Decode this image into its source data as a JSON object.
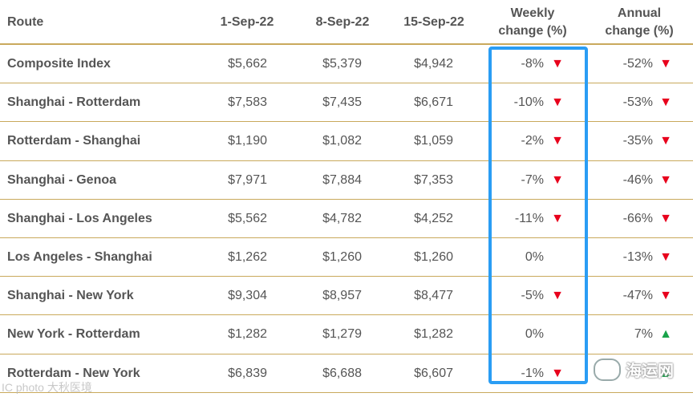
{
  "headers": {
    "route": "Route",
    "d1": "1-Sep-22",
    "d2": "8-Sep-22",
    "d3": "15-Sep-22",
    "weekly_line1": "Weekly",
    "weekly_line2": "change (%)",
    "annual_line1": "Annual",
    "annual_line2": "change (%)"
  },
  "rows": [
    {
      "route": "Composite Index",
      "d1": "$5,662",
      "d2": "$5,379",
      "d3": "$4,942",
      "weekly": "-8%",
      "weekly_icon": "▼",
      "annual": "-52%",
      "annual_icon": "▼"
    },
    {
      "route": "Shanghai - Rotterdam",
      "d1": "$7,583",
      "d2": "$7,435",
      "d3": "$6,671",
      "weekly": "-10%",
      "weekly_icon": "▼",
      "annual": "-53%",
      "annual_icon": "▼"
    },
    {
      "route": "Rotterdam - Shanghai",
      "d1": "$1,190",
      "d2": "$1,082",
      "d3": "$1,059",
      "weekly": "-2%",
      "weekly_icon": "▼",
      "annual": "-35%",
      "annual_icon": "▼"
    },
    {
      "route": "Shanghai - Genoa",
      "d1": "$7,971",
      "d2": "$7,884",
      "d3": "$7,353",
      "weekly": "-7%",
      "weekly_icon": "▼",
      "annual": "-46%",
      "annual_icon": "▼"
    },
    {
      "route": "Shanghai - Los Angeles",
      "d1": "$5,562",
      "d2": "$4,782",
      "d3": "$4,252",
      "weekly": "-11%",
      "weekly_icon": "▼",
      "annual": "-66%",
      "annual_icon": "▼"
    },
    {
      "route": "Los Angeles - Shanghai",
      "d1": "$1,262",
      "d2": "$1,260",
      "d3": "$1,260",
      "weekly": "0%",
      "weekly_icon": "",
      "annual": "-13%",
      "annual_icon": "▼"
    },
    {
      "route": "Shanghai - New York",
      "d1": "$9,304",
      "d2": "$8,957",
      "d3": "$8,477",
      "weekly": "-5%",
      "weekly_icon": "▼",
      "annual": "-47%",
      "annual_icon": "▼"
    },
    {
      "route": "New York - Rotterdam",
      "d1": "$1,282",
      "d2": "$1,279",
      "d3": "$1,282",
      "weekly": "0%",
      "weekly_icon": "",
      "annual": "7%",
      "annual_icon": "▲"
    },
    {
      "route": "Rotterdam - New York",
      "d1": "$6,839",
      "d2": "$6,688",
      "d3": "$6,607",
      "weekly": "-1%",
      "weekly_icon": "▼",
      "annual": "",
      "annual_icon": "▲"
    }
  ],
  "colors": {
    "down": "#e8001c",
    "up": "#19a34a",
    "rule": "#c9a95c",
    "highlight": "#2a9df4"
  },
  "watermarks": {
    "left": "IC photo 大秋医境",
    "right": "海运网"
  }
}
